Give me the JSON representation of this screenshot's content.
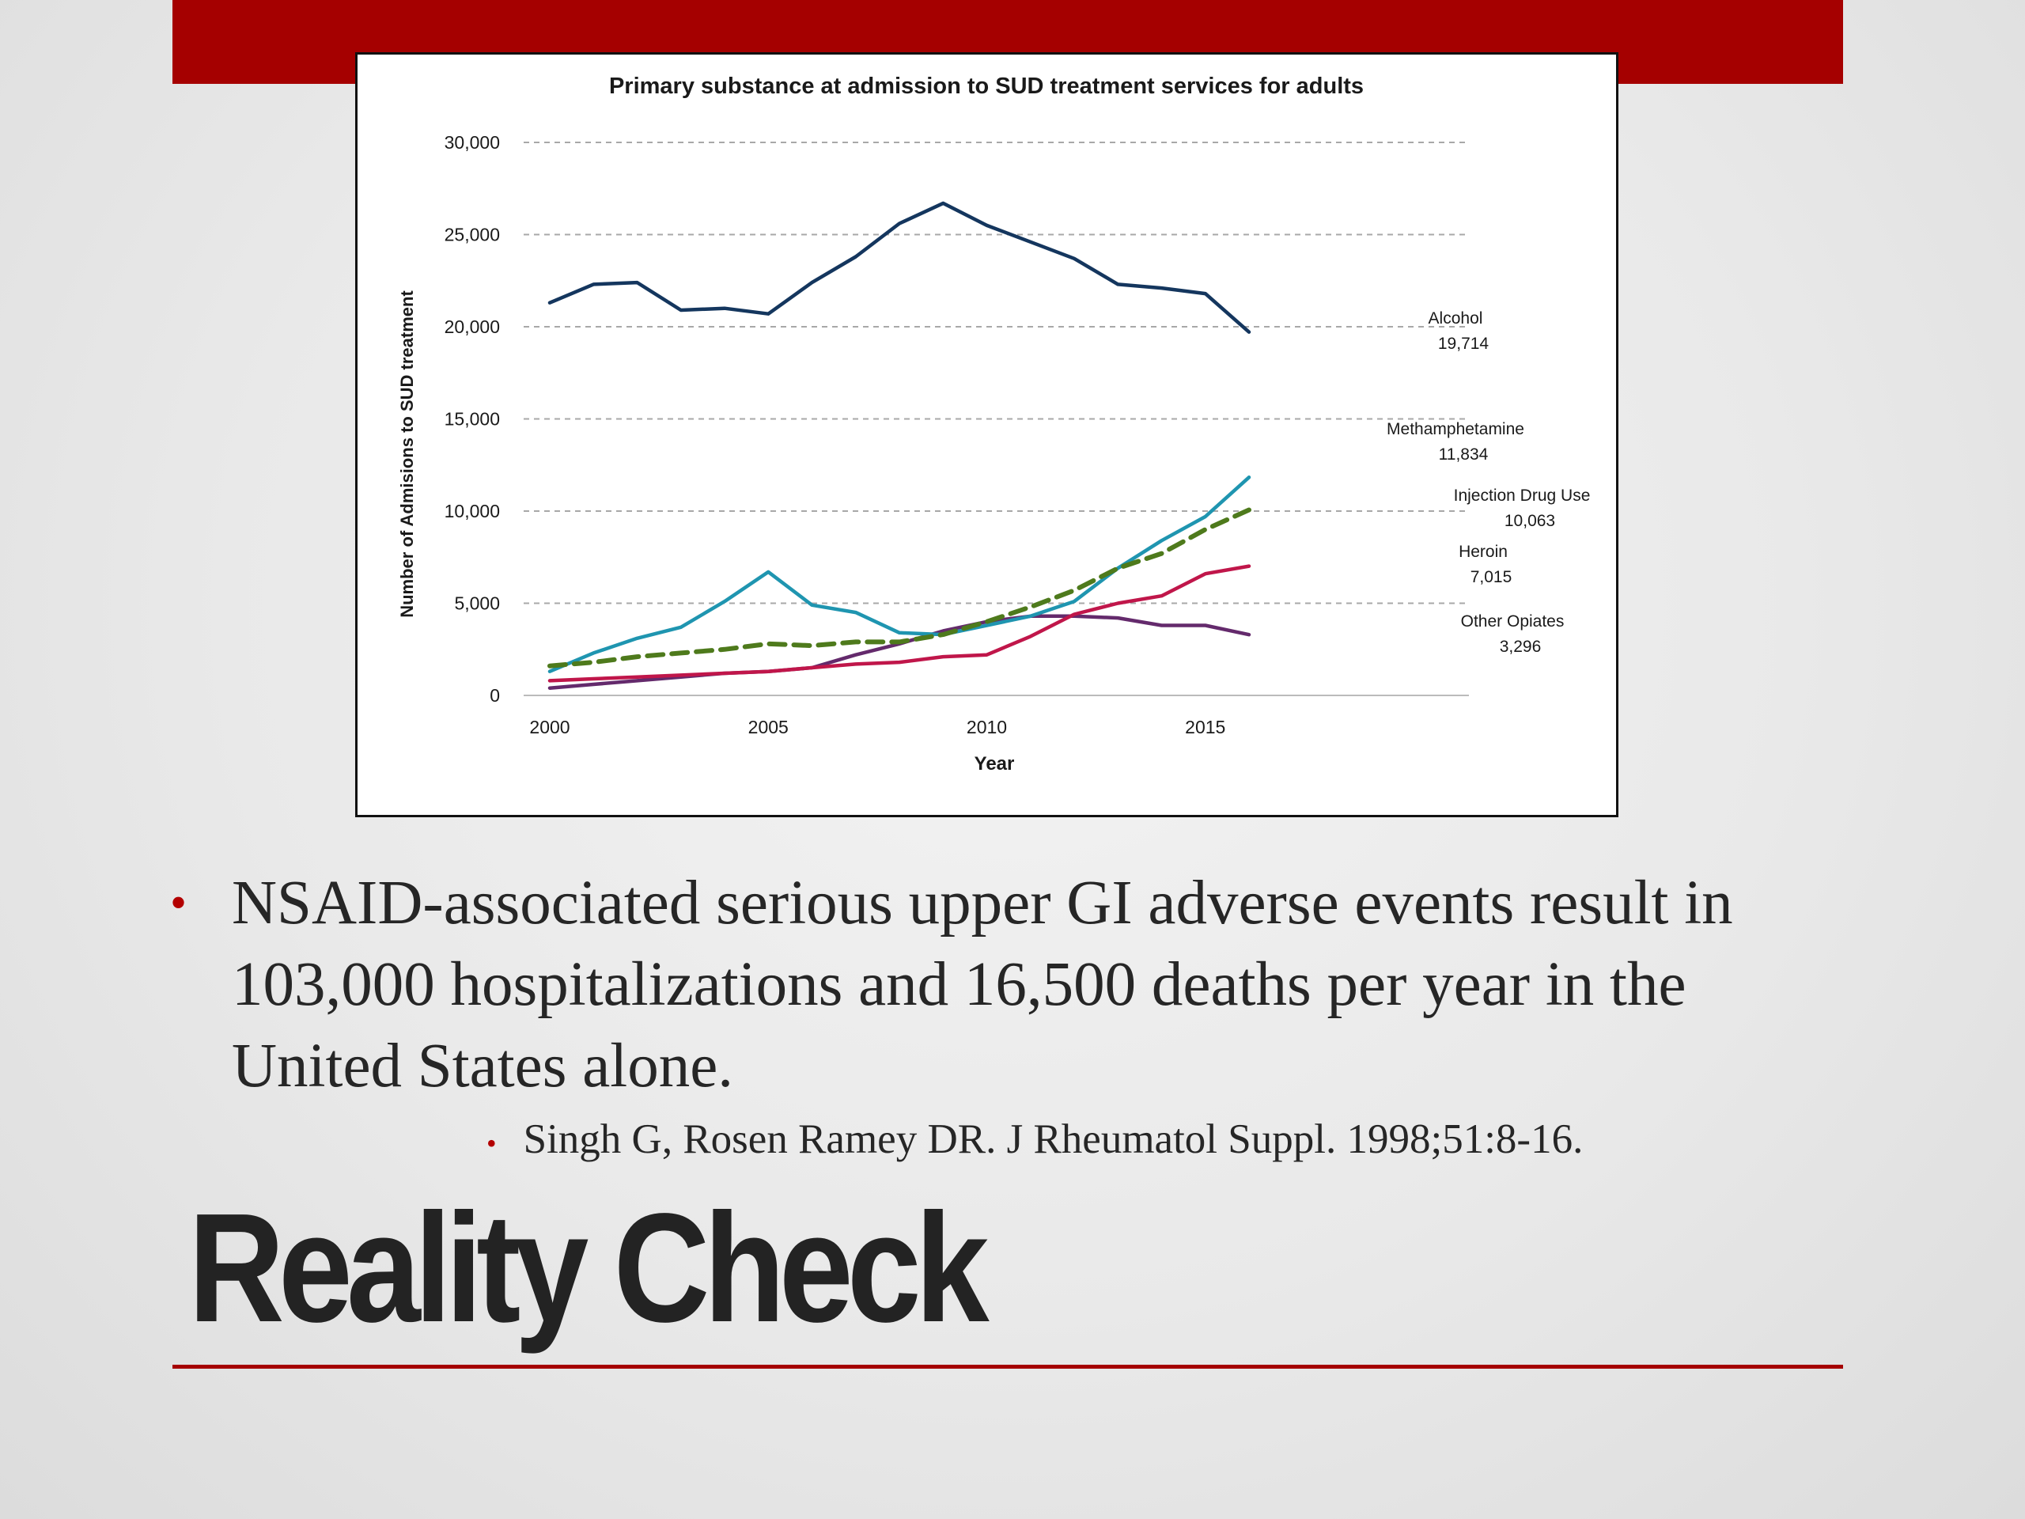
{
  "slide": {
    "title": "Reality Check",
    "bullet": "NSAID-associated serious upper GI adverse events result in 103,000 hospitalizations and 16,500 deaths per year in the United States alone.",
    "citation": "Singh G, Rosen Ramey DR. J Rheumatol Suppl. 1998;51:8-16."
  },
  "colors": {
    "band": "#a50000",
    "bullet": "#b30000",
    "alcohol": "#14365e",
    "methamphetamine": "#1f95b0",
    "injection": "#4e7a1c",
    "heroin": "#c0164a",
    "opiates": "#642a6c"
  },
  "chart_data": {
    "type": "line",
    "title": "Primary substance at admission to SUD treatment services for adults",
    "xlabel": "Year",
    "ylabel": "Number of Admisions to SUD treatment",
    "xlim": [
      2000,
      2016
    ],
    "ylim": [
      0,
      30000
    ],
    "x_ticks": [
      "2000",
      "2005",
      "2010",
      "2015"
    ],
    "y_ticks": [
      "0",
      "5,000",
      "10,000",
      "15,000",
      "20,000",
      "25,000",
      "30,000"
    ],
    "grid": "horizontal dashed",
    "x": [
      2000,
      2001,
      2002,
      2003,
      2004,
      2005,
      2006,
      2007,
      2008,
      2009,
      2010,
      2011,
      2012,
      2013,
      2014,
      2015,
      2016
    ],
    "series": [
      {
        "name": "Alcohol",
        "end_label": "19,714",
        "style": "solid",
        "values": [
          21300,
          22300,
          22400,
          20900,
          21000,
          20700,
          22400,
          23800,
          25600,
          26700,
          25500,
          24600,
          23700,
          22300,
          22100,
          21800,
          19714
        ]
      },
      {
        "name": "Methamphetamine",
        "end_label": "11,834",
        "style": "solid",
        "values": [
          1300,
          2300,
          3100,
          3700,
          5100,
          6700,
          4900,
          4500,
          3400,
          3300,
          3800,
          4300,
          5100,
          6900,
          8400,
          9700,
          11834
        ]
      },
      {
        "name": "Injection Drug Use",
        "end_label": "10,063",
        "style": "dashed",
        "values": [
          1600,
          1800,
          2100,
          2300,
          2500,
          2800,
          2700,
          2900,
          2900,
          3300,
          4000,
          4800,
          5700,
          6900,
          7700,
          9000,
          10063
        ]
      },
      {
        "name": "Heroin",
        "end_label": "7,015",
        "style": "solid",
        "values": [
          800,
          900,
          1000,
          1100,
          1200,
          1300,
          1500,
          1700,
          1800,
          2100,
          2200,
          3200,
          4400,
          5000,
          5400,
          6600,
          7015
        ]
      },
      {
        "name": "Other Opiates",
        "end_label": "3,296",
        "style": "solid",
        "values": [
          400,
          600,
          800,
          1000,
          1200,
          1300,
          1500,
          2200,
          2800,
          3500,
          4000,
          4300,
          4300,
          4200,
          3800,
          3800,
          3296
        ]
      }
    ]
  }
}
